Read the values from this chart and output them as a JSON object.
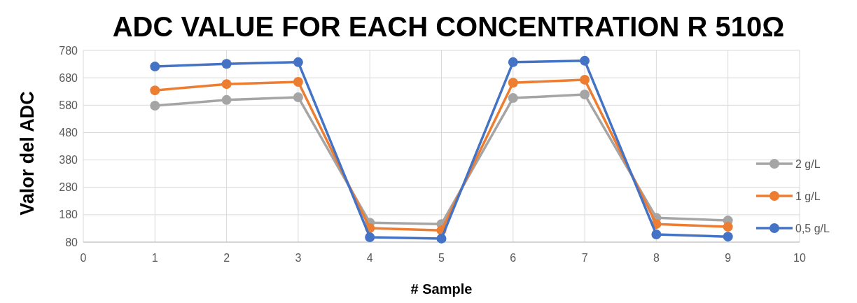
{
  "chart_data": {
    "type": "line",
    "title": "ADC VALUE FOR EACH CONCENTRATION R 510Ω",
    "xlabel": "# Sample",
    "ylabel": "Valor del ADC",
    "x": [
      1,
      2,
      3,
      4,
      5,
      6,
      7,
      8,
      9
    ],
    "series": [
      {
        "name": "2 g/L",
        "color": "#a5a5a5",
        "values": [
          578,
          599,
          609,
          151,
          146,
          606,
          619,
          169,
          159
        ]
      },
      {
        "name": "1 g/L",
        "color": "#ed7d31",
        "values": [
          634,
          657,
          665,
          131,
          123,
          662,
          673,
          146,
          136
        ]
      },
      {
        "name": "0,5 g/L",
        "color": "#4472c4",
        "values": [
          721,
          731,
          737,
          98,
          93,
          737,
          742,
          108,
          100
        ]
      }
    ],
    "xlim": [
      0,
      10
    ],
    "xticks": [
      0,
      1,
      2,
      3,
      4,
      5,
      6,
      7,
      8,
      9,
      10
    ],
    "ylim": [
      80,
      780
    ],
    "yticks": [
      80,
      180,
      280,
      380,
      480,
      580,
      680,
      780
    ],
    "grid": true,
    "legend": "right",
    "marker": "circle",
    "line_style": "solid"
  }
}
